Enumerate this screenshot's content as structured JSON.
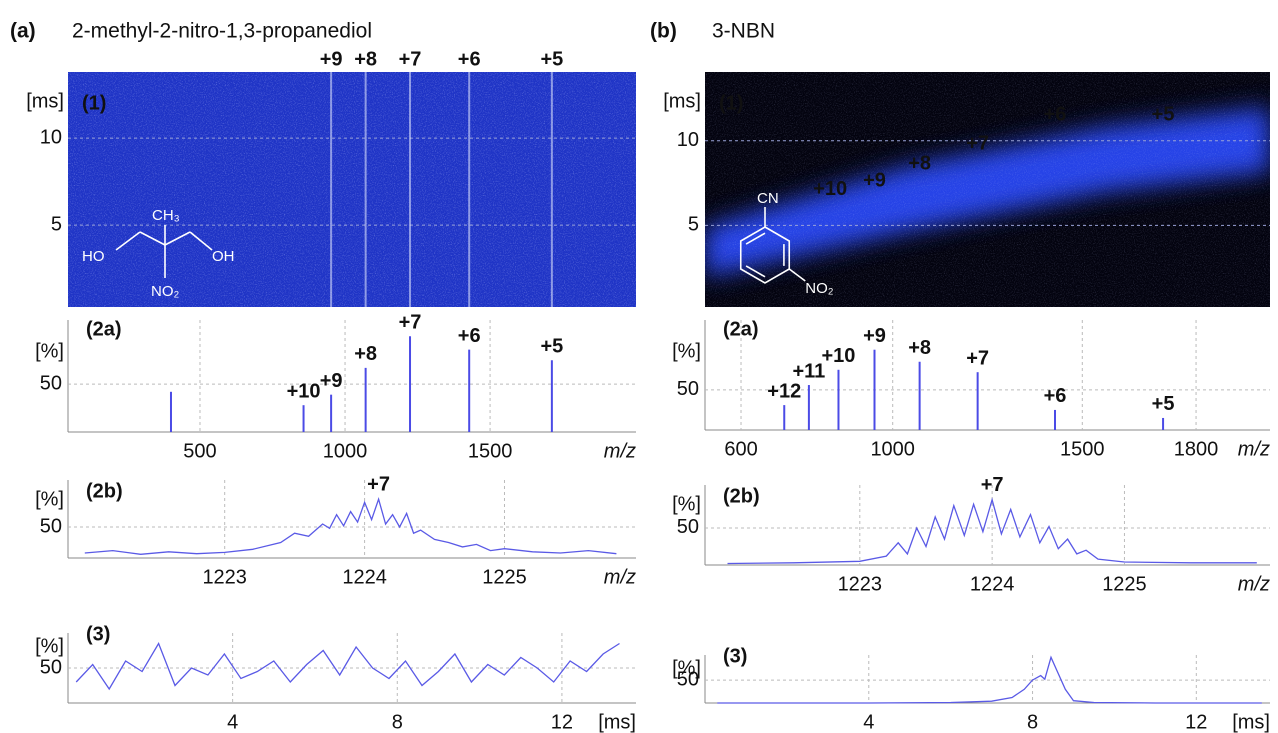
{
  "figure": {
    "a_label": "(a)",
    "a_title": "2-methyl-2-nitro-1,3-propanediol",
    "b_label": "(b)",
    "b_title": "3-NBN",
    "structure_a": {
      "ho": "HO",
      "oh": "OH",
      "ch3": "CH₃",
      "no2": "NO₂"
    },
    "structure_b": {
      "cn": "CN",
      "no2": "NO₂"
    }
  },
  "chart_data": [
    {
      "type": "heatmap",
      "label": "(1)",
      "ylabel": "[ms]",
      "ylim": [
        0.3,
        13.8
      ],
      "yticks": [
        5,
        10
      ],
      "xlim": [
        45,
        2003
      ],
      "grid": true,
      "background": "#1f34c6",
      "annotations": [
        {
          "label": "+9",
          "x": 952
        },
        {
          "label": "+8",
          "x": 1071
        },
        {
          "label": "+7",
          "x": 1224
        },
        {
          "label": "+6",
          "x": 1428
        },
        {
          "label": "+5",
          "x": 1713
        }
      ]
    },
    {
      "type": "stick",
      "label": "(2a)",
      "ylabel": "[%]",
      "xlabel": "m/z",
      "xlim": [
        45,
        2003
      ],
      "xticks": [
        500,
        1000,
        1500
      ],
      "ylim": [
        0,
        117
      ],
      "yticks": [
        50
      ],
      "grid": true,
      "color": "#4b4be6",
      "x": [
        400,
        857,
        952,
        1071,
        1224,
        1428,
        1713
      ],
      "values": [
        42,
        28,
        39,
        67,
        100,
        86,
        75
      ],
      "labels": [
        null,
        "+10",
        "+9",
        "+8",
        "+7",
        "+6",
        "+5"
      ]
    },
    {
      "type": "line",
      "label": "(2b)",
      "ylabel": "[%]",
      "xlabel": "m/z",
      "xlim": [
        1221.88,
        1225.94
      ],
      "xticks": [
        1223,
        1224,
        1225
      ],
      "ylim": [
        0,
        126
      ],
      "yticks": [
        50
      ],
      "grid": true,
      "color": "#5a5ae6",
      "peak_label": "+7",
      "x": [
        1222.0,
        1222.2,
        1222.4,
        1222.6,
        1222.8,
        1223.0,
        1223.2,
        1223.4,
        1223.5,
        1223.6,
        1223.7,
        1223.75,
        1223.8,
        1223.85,
        1223.9,
        1223.95,
        1224.0,
        1224.05,
        1224.1,
        1224.15,
        1224.2,
        1224.25,
        1224.3,
        1224.35,
        1224.4,
        1224.5,
        1224.6,
        1224.7,
        1224.8,
        1224.9,
        1225.0,
        1225.2,
        1225.4,
        1225.6,
        1225.8
      ],
      "values": [
        8,
        12,
        6,
        10,
        7,
        9,
        14,
        25,
        40,
        35,
        55,
        48,
        70,
        52,
        75,
        58,
        90,
        62,
        95,
        55,
        70,
        50,
        72,
        40,
        45,
        30,
        25,
        18,
        22,
        12,
        15,
        10,
        8,
        12,
        7
      ]
    },
    {
      "type": "line",
      "label": "(3)",
      "ylabel": "[%]",
      "xlabel": "[ms]",
      "xlim": [
        0,
        13.8
      ],
      "xticks": [
        4,
        8,
        12
      ],
      "ylim": [
        0,
        100
      ],
      "yticks": [
        50
      ],
      "grid": true,
      "color": "#5a5ae6",
      "x": [
        0.2,
        0.6,
        1,
        1.4,
        1.8,
        2.2,
        2.6,
        3,
        3.4,
        3.8,
        4.2,
        4.6,
        5,
        5.4,
        5.8,
        6.2,
        6.6,
        7,
        7.4,
        7.8,
        8.2,
        8.6,
        9,
        9.4,
        9.8,
        10.2,
        10.6,
        11,
        11.4,
        11.8,
        12.2,
        12.6,
        13,
        13.4
      ],
      "values": [
        30,
        55,
        20,
        60,
        45,
        85,
        25,
        50,
        40,
        70,
        35,
        45,
        60,
        30,
        55,
        75,
        40,
        80,
        50,
        35,
        60,
        25,
        45,
        70,
        30,
        55,
        40,
        65,
        50,
        30,
        60,
        45,
        70,
        85
      ]
    },
    {
      "type": "heatmap",
      "label": "(1)",
      "ylabel": "[ms]",
      "ylim": [
        0.18,
        14.06
      ],
      "yticks": [
        5,
        10
      ],
      "xlim": [
        505,
        1995
      ],
      "grid": true,
      "background": "#03030f",
      "band_color": "#2a4cff",
      "annotations": [
        {
          "label": "+10",
          "x": 835,
          "y": 7.1
        },
        {
          "label": "+9",
          "x": 952,
          "y": 7.6
        },
        {
          "label": "+8",
          "x": 1071,
          "y": 8.6
        },
        {
          "label": "+7",
          "x": 1224,
          "y": 9.8
        },
        {
          "label": "+6",
          "x": 1428,
          "y": 11.5
        },
        {
          "label": "+5",
          "x": 1713,
          "y": 11.5
        }
      ]
    },
    {
      "type": "stick",
      "label": "(2a)",
      "ylabel": "[%]",
      "xlabel": "m/z",
      "xlim": [
        505,
        1995
      ],
      "xticks": [
        600,
        1000,
        1500,
        1800
      ],
      "ylim": [
        0,
        137
      ],
      "yticks": [
        50
      ],
      "grid": true,
      "color": "#4b4be6",
      "x": [
        714,
        779,
        857,
        952,
        1071,
        1224,
        1428,
        1713
      ],
      "values": [
        31,
        56,
        75,
        100,
        85,
        72,
        25,
        15
      ],
      "labels": [
        "+12",
        "+11",
        "+10",
        "+9",
        "+8",
        "+7",
        "+6",
        "+5"
      ]
    },
    {
      "type": "line",
      "label": "(2b)",
      "ylabel": "[%]",
      "xlabel": "m/z",
      "xlim": [
        1221.83,
        1226.1
      ],
      "xticks": [
        1223,
        1224,
        1225
      ],
      "ylim": [
        0,
        108
      ],
      "yticks": [
        50
      ],
      "grid": true,
      "color": "#5a5ae6",
      "peak_label": "+7",
      "x": [
        1222.0,
        1222.5,
        1223.0,
        1223.2,
        1223.29,
        1223.36,
        1223.43,
        1223.5,
        1223.57,
        1223.64,
        1223.71,
        1223.79,
        1223.86,
        1223.93,
        1224.0,
        1224.07,
        1224.14,
        1224.21,
        1224.29,
        1224.36,
        1224.43,
        1224.5,
        1224.57,
        1224.64,
        1224.71,
        1224.8,
        1225.0,
        1225.5,
        1226.0
      ],
      "values": [
        2,
        3,
        5,
        12,
        30,
        15,
        50,
        25,
        65,
        35,
        80,
        40,
        82,
        45,
        88,
        42,
        75,
        38,
        68,
        30,
        52,
        22,
        35,
        15,
        20,
        8,
        4,
        3,
        3
      ]
    },
    {
      "type": "line",
      "label": "(3)",
      "ylabel": "[%]",
      "xlabel": "[ms]",
      "xlim": [
        0,
        13.8
      ],
      "xticks": [
        4,
        8,
        12
      ],
      "ylim": [
        0,
        105
      ],
      "yticks": [
        50
      ],
      "grid": true,
      "color": "#5a5ae6",
      "x": [
        0.3,
        2,
        4,
        6,
        7,
        7.5,
        7.8,
        8.0,
        8.2,
        8.3,
        8.45,
        8.6,
        8.8,
        9.0,
        9.5,
        11,
        13.6
      ],
      "values": [
        0,
        0,
        0,
        1,
        4,
        12,
        30,
        50,
        60,
        52,
        100,
        70,
        30,
        5,
        1,
        0,
        0
      ]
    }
  ]
}
